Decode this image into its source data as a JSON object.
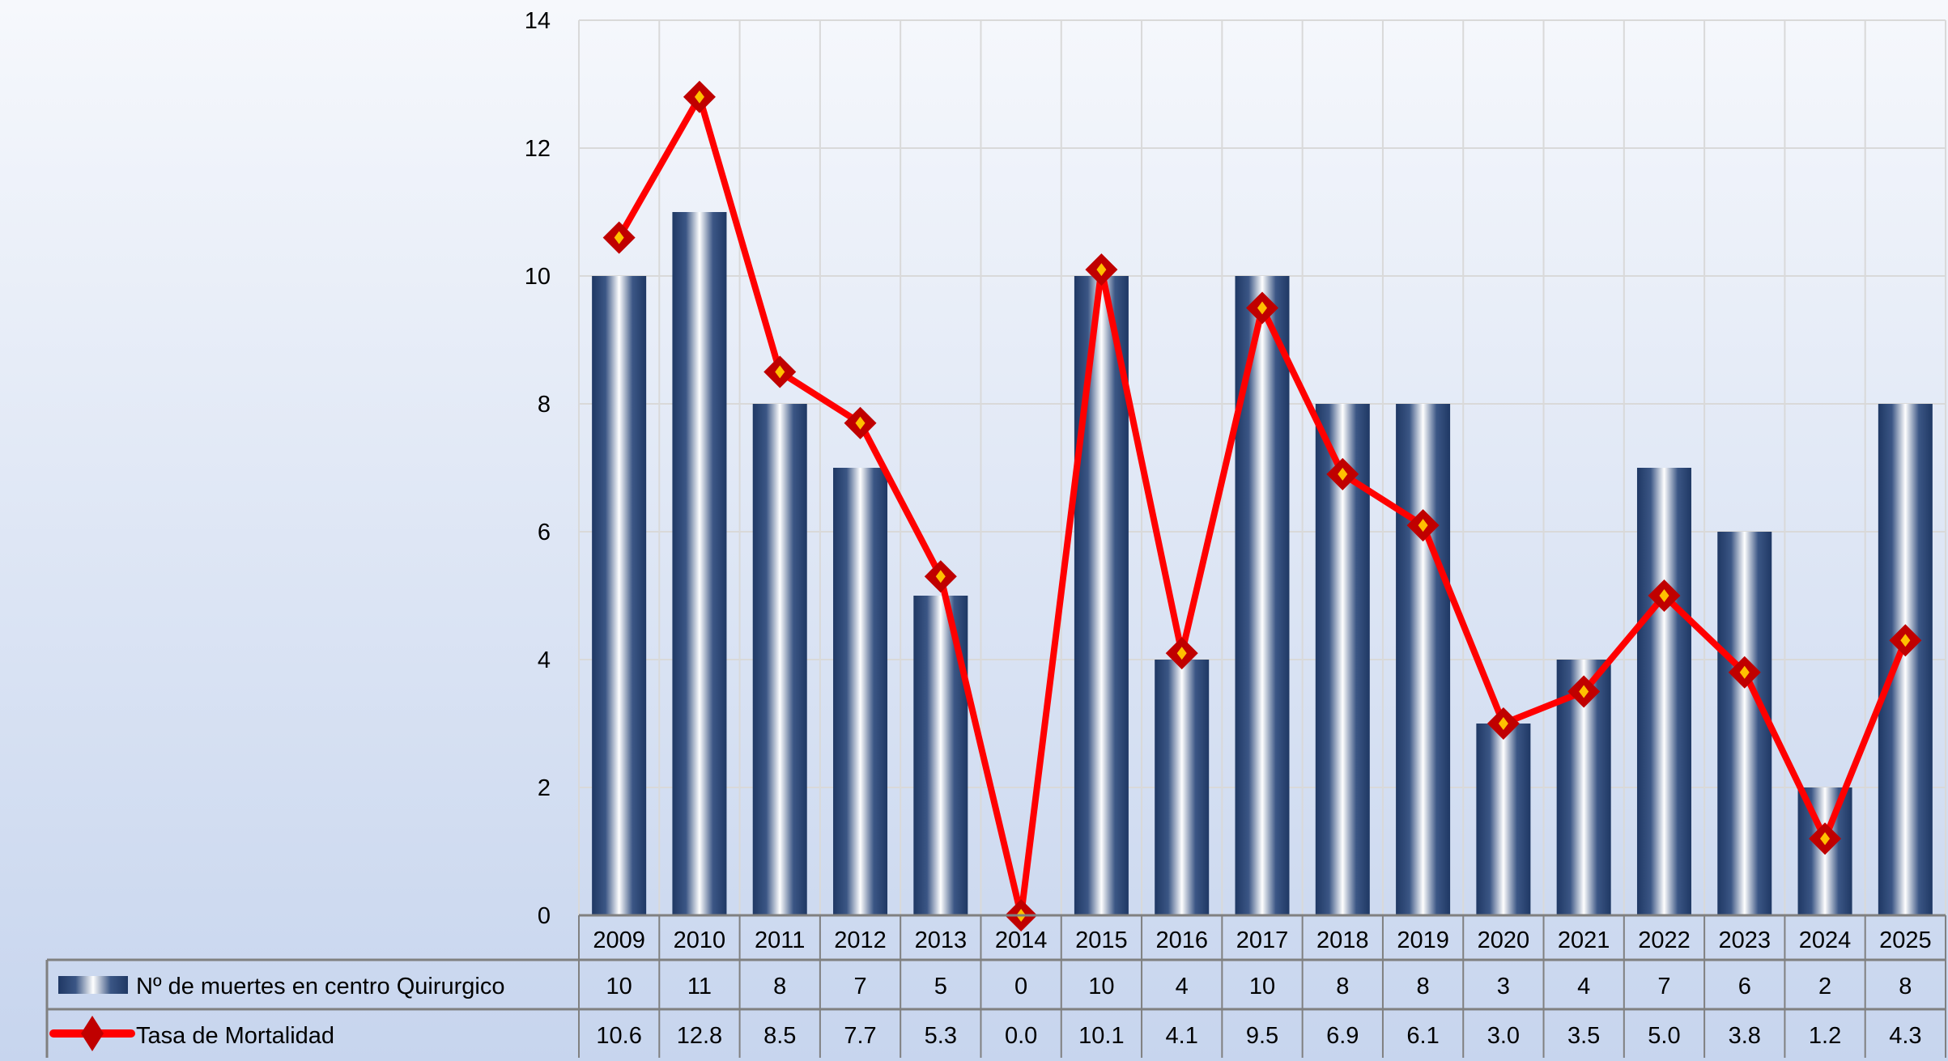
{
  "chart_data": {
    "type": "bar+line",
    "title": "",
    "categories": [
      "2009",
      "2010",
      "2011",
      "2012",
      "2013",
      "2014",
      "2015",
      "2016",
      "2017",
      "2018",
      "2019",
      "2020",
      "2021",
      "2022",
      "2023",
      "2024",
      "2025"
    ],
    "series": [
      {
        "name": "Nº de muertes en centro Quirurgico",
        "type": "bar",
        "values": [
          10,
          11,
          8,
          7,
          5,
          0,
          10,
          4,
          10,
          8,
          8,
          3,
          4,
          7,
          6,
          2,
          8
        ],
        "labels": [
          "10",
          "11",
          "8",
          "7",
          "5",
          "0",
          "10",
          "4",
          "10",
          "8",
          "8",
          "3",
          "4",
          "7",
          "6",
          "2",
          "8"
        ],
        "color": "#1f3864"
      },
      {
        "name": "Tasa de Mortalidad",
        "type": "line",
        "values": [
          10.6,
          12.8,
          8.5,
          7.7,
          5.3,
          0.0,
          10.1,
          4.1,
          9.5,
          6.9,
          6.1,
          3.0,
          3.5,
          5.0,
          3.8,
          1.2,
          4.3
        ],
        "labels": [
          "10.6",
          "12.8",
          "8.5",
          "7.7",
          "5.3",
          "0.0",
          "10.1",
          "4.1",
          "9.5",
          "6.9",
          "6.1",
          "3.0",
          "3.5",
          "5.0",
          "3.8",
          "1.2",
          "4.3"
        ],
        "color": "#ff0000",
        "marker_color": "#c00000",
        "marker_fill": "#ffc000"
      }
    ],
    "ylim": [
      0,
      14
    ],
    "yticks": [
      "0",
      "2",
      "4",
      "6",
      "8",
      "10",
      "12",
      "14"
    ],
    "grid": true,
    "legend": "data-table-bottom"
  }
}
